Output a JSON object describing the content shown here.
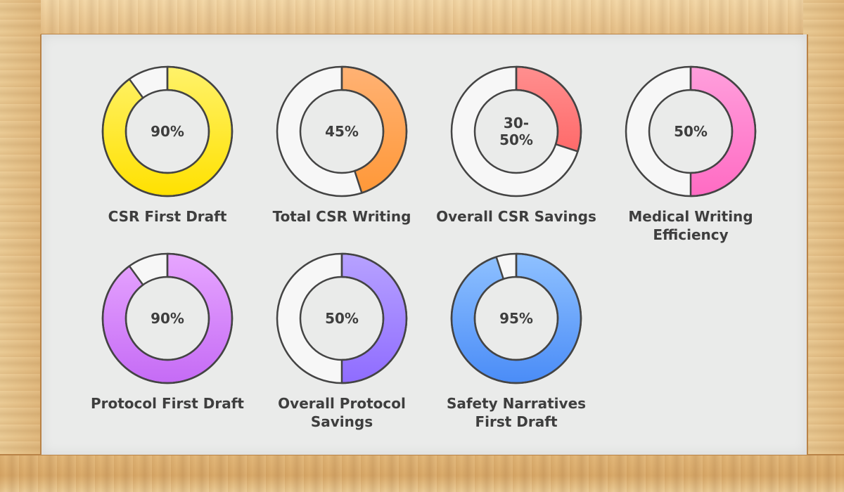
{
  "chart_data": {
    "type": "pie",
    "variant": "donut-grid",
    "items": [
      {
        "label_lines": [
          "CSR First Draft"
        ],
        "value_lines": [
          "90%"
        ],
        "value": 90,
        "colors": [
          "#fff26a",
          "#ffe100"
        ]
      },
      {
        "label_lines": [
          "Total CSR Writing"
        ],
        "value_lines": [
          "45%"
        ],
        "value": 45,
        "colors": [
          "#ffb274",
          "#ff9838"
        ]
      },
      {
        "label_lines": [
          "Overall CSR Savings"
        ],
        "value_lines": [
          "30-",
          "50%"
        ],
        "value": 30,
        "colors": [
          "#ff8f8f",
          "#ff6a6a"
        ]
      },
      {
        "label_lines": [
          "Medical Writing",
          "Efficiency"
        ],
        "value_lines": [
          "50%"
        ],
        "value": 50,
        "colors": [
          "#ff9fdc",
          "#ff6bc3"
        ]
      },
      {
        "label_lines": [
          "Protocol First Draft"
        ],
        "value_lines": [
          "90%"
        ],
        "value": 90,
        "colors": [
          "#e7a6ff",
          "#c56bf5"
        ]
      },
      {
        "label_lines": [
          "Overall Protocol",
          "Savings"
        ],
        "value_lines": [
          "50%"
        ],
        "value": 50,
        "colors": [
          "#b7a2ff",
          "#8f6cff"
        ]
      },
      {
        "label_lines": [
          "Safety Narratives",
          "First Draft"
        ],
        "value_lines": [
          "95%"
        ],
        "value": 95,
        "colors": [
          "#8fc1ff",
          "#4a8cf7"
        ]
      }
    ],
    "remainder_color": "#f7f7f7",
    "outline_color": "#444444"
  }
}
